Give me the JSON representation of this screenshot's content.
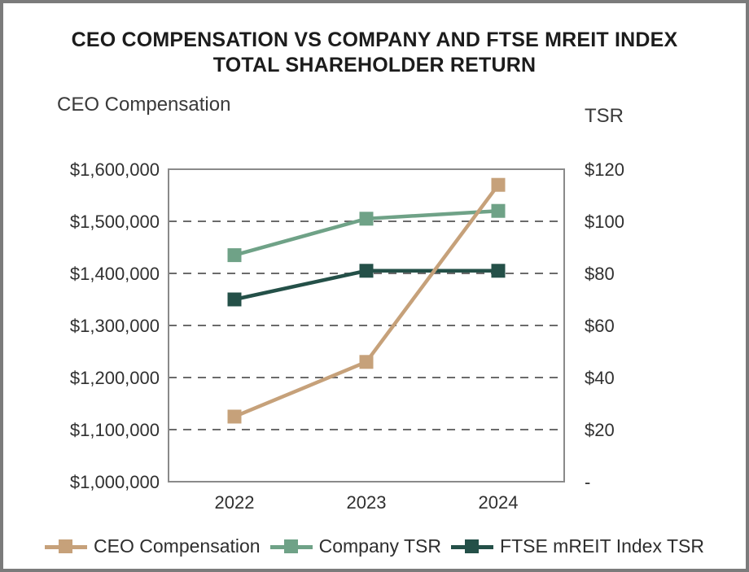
{
  "frame": {
    "border_color": "#7b7b7b",
    "background": "#ffffff"
  },
  "chart": {
    "title_lines": [
      "CEO COMPENSATION VS COMPANY AND FTSE MREIT INDEX",
      "TOTAL SHAREHOLDER RETURN"
    ],
    "left_axis_title": "CEO Compensation",
    "right_axis_title": "TSR"
  },
  "chart_data": {
    "type": "line",
    "title": "CEO COMPENSATION VS COMPANY AND FTSE MREIT INDEX TOTAL SHAREHOLDER RETURN",
    "categories": [
      "2022",
      "2023",
      "2024"
    ],
    "series": [
      {
        "name": "CEO Compensation",
        "axis": "left",
        "color": "#C6A17A",
        "marker": "square",
        "values": [
          1125000,
          1230000,
          1570000
        ]
      },
      {
        "name": "Company TSR",
        "axis": "right",
        "color": "#6FA287",
        "marker": "square",
        "values": [
          87,
          101,
          104
        ]
      },
      {
        "name": "FTSE mREIT Index TSR",
        "axis": "right",
        "color": "#245048",
        "marker": "square",
        "values": [
          70,
          81,
          81
        ]
      }
    ],
    "left_axis": {
      "title": "CEO Compensation",
      "ticks": [
        "$1,600,000",
        "$1,500,000",
        "$1,400,000",
        "$1,300,000",
        "$1,200,000",
        "$1,100,000",
        "$1,000,000"
      ],
      "min": 1000000,
      "max": 1600000
    },
    "right_axis": {
      "title": "TSR",
      "ticks": [
        "$120",
        "$100",
        "$80",
        "$60",
        "$40",
        "$20",
        "-"
      ],
      "min": 0,
      "max": 120
    },
    "grid": "horizontal-dashed",
    "legend_position": "bottom"
  }
}
